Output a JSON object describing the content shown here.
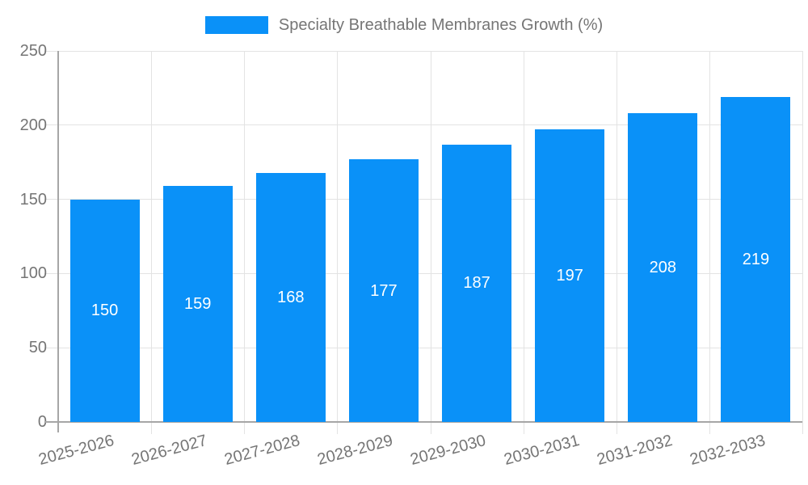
{
  "chart_data": {
    "type": "bar",
    "title": "Specialty Breathable Membranes Growth (%)",
    "series_name": "Specialty Breathable Membranes Growth (%)",
    "categories": [
      "2025-2026",
      "2026-2027",
      "2027-2028",
      "2028-2029",
      "2029-2030",
      "2030-2031",
      "2031-2032",
      "2032-2033"
    ],
    "values": [
      150,
      159,
      168,
      177,
      187,
      197,
      208,
      219
    ],
    "value_labels": [
      "150",
      "159",
      "168",
      "177",
      "187",
      "197",
      "208",
      "219"
    ],
    "xlabel": "",
    "ylabel": "",
    "ylim": [
      0,
      250
    ],
    "yticks": [
      0,
      50,
      100,
      150,
      200,
      250
    ],
    "grid": true,
    "legend_position": "top",
    "x_tick_rotation_deg": -15,
    "colors": {
      "bar": "#0A91F8",
      "grid": "#E3E3E3",
      "axis": "#A6A6A6",
      "tick_text": "#757575",
      "value_text": "#FFFFFF",
      "legend_text": "#757575",
      "background": "#FFFFFF"
    }
  }
}
